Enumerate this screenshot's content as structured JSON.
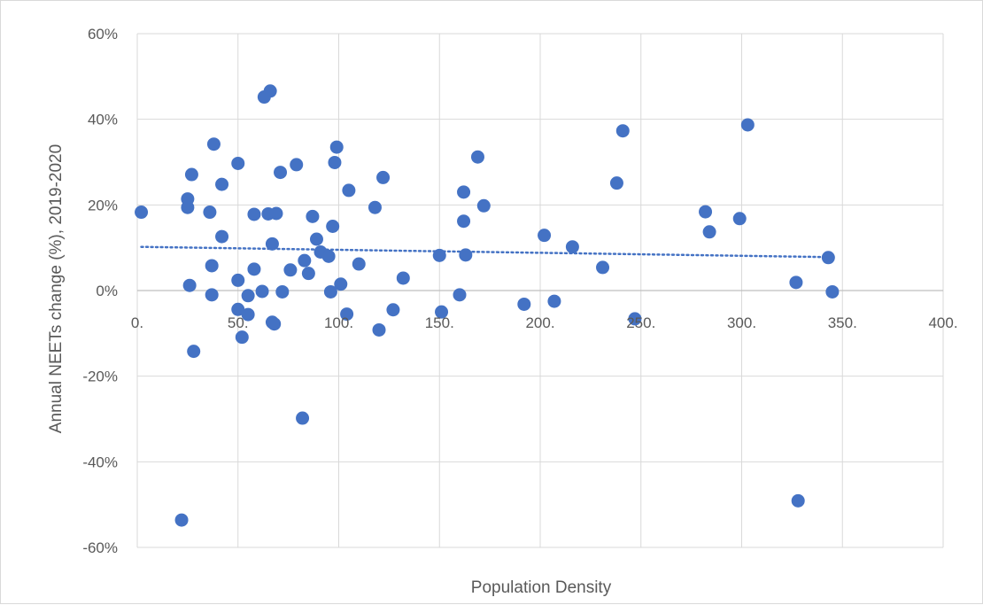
{
  "chart_data": {
    "type": "scatter",
    "xlabel": "Population Density",
    "ylabel": "Annual NEETs change (%), 2019-2020",
    "xlim": [
      0,
      400
    ],
    "ylim": [
      -60,
      60
    ],
    "x_ticks": [
      {
        "value": 0,
        "label": "0."
      },
      {
        "value": 50,
        "label": "50."
      },
      {
        "value": 100,
        "label": "100."
      },
      {
        "value": 150,
        "label": "150."
      },
      {
        "value": 200,
        "label": "200."
      },
      {
        "value": 250,
        "label": "250."
      },
      {
        "value": 300,
        "label": "300."
      },
      {
        "value": 350,
        "label": "350."
      },
      {
        "value": 400,
        "label": "400."
      }
    ],
    "y_ticks": [
      {
        "value": 60,
        "label": "60%"
      },
      {
        "value": 40,
        "label": "40%"
      },
      {
        "value": 20,
        "label": "20%"
      },
      {
        "value": 0,
        "label": "0%"
      },
      {
        "value": -20,
        "label": "-20%"
      },
      {
        "value": -40,
        "label": "-40%"
      },
      {
        "value": -60,
        "label": "-60%"
      }
    ],
    "grid": true,
    "legend": "none",
    "colors": {
      "point": "#4472c4",
      "trendline": "#4472c4",
      "grid": "#d9d9d9",
      "axis": "#bfbfbf",
      "text": "#595959"
    },
    "trendline": {
      "type": "linear",
      "style": "dotted",
      "x": [
        2,
        345
      ],
      "y": [
        10.2,
        7.8
      ]
    },
    "series": [
      {
        "points": [
          {
            "x": 2,
            "y": 18.3
          },
          {
            "x": 22,
            "y": -53.6
          },
          {
            "x": 25,
            "y": 21.4
          },
          {
            "x": 25,
            "y": 19.4
          },
          {
            "x": 26,
            "y": 1.2
          },
          {
            "x": 27,
            "y": 27.1
          },
          {
            "x": 28,
            "y": -14.2
          },
          {
            "x": 36,
            "y": 18.3
          },
          {
            "x": 37,
            "y": 5.8
          },
          {
            "x": 37,
            "y": -1.0
          },
          {
            "x": 38,
            "y": 34.2
          },
          {
            "x": 42,
            "y": 24.8
          },
          {
            "x": 42,
            "y": 12.6
          },
          {
            "x": 50,
            "y": 29.7
          },
          {
            "x": 50,
            "y": 2.4
          },
          {
            "x": 50,
            "y": -4.4
          },
          {
            "x": 52,
            "y": -10.9
          },
          {
            "x": 55,
            "y": -1.2
          },
          {
            "x": 55,
            "y": -5.6
          },
          {
            "x": 58,
            "y": 17.8
          },
          {
            "x": 58,
            "y": 5.0
          },
          {
            "x": 62,
            "y": -0.2
          },
          {
            "x": 63,
            "y": 45.2
          },
          {
            "x": 65,
            "y": 17.9
          },
          {
            "x": 66,
            "y": 46.6
          },
          {
            "x": 67,
            "y": 10.9
          },
          {
            "x": 67,
            "y": -7.4
          },
          {
            "x": 68,
            "y": -7.8
          },
          {
            "x": 69,
            "y": 18.0
          },
          {
            "x": 71,
            "y": 27.6
          },
          {
            "x": 72,
            "y": -0.3
          },
          {
            "x": 76,
            "y": 4.8
          },
          {
            "x": 79,
            "y": 29.4
          },
          {
            "x": 82,
            "y": -29.8
          },
          {
            "x": 83,
            "y": 7.0
          },
          {
            "x": 85,
            "y": 4.0
          },
          {
            "x": 87,
            "y": 17.3
          },
          {
            "x": 89,
            "y": 12.0
          },
          {
            "x": 91,
            "y": 9.0
          },
          {
            "x": 95,
            "y": 8.0
          },
          {
            "x": 96,
            "y": -0.3
          },
          {
            "x": 97,
            "y": 15.0
          },
          {
            "x": 98,
            "y": 29.9
          },
          {
            "x": 99,
            "y": 33.5
          },
          {
            "x": 101,
            "y": 1.5
          },
          {
            "x": 104,
            "y": -5.5
          },
          {
            "x": 105,
            "y": 23.4
          },
          {
            "x": 110,
            "y": 6.2
          },
          {
            "x": 118,
            "y": 19.4
          },
          {
            "x": 120,
            "y": -9.2
          },
          {
            "x": 122,
            "y": 26.4
          },
          {
            "x": 127,
            "y": -4.5
          },
          {
            "x": 132,
            "y": 2.9
          },
          {
            "x": 150,
            "y": 8.2
          },
          {
            "x": 151,
            "y": -5.0
          },
          {
            "x": 160,
            "y": -1.0
          },
          {
            "x": 162,
            "y": 16.2
          },
          {
            "x": 162,
            "y": 23.0
          },
          {
            "x": 163,
            "y": 8.3
          },
          {
            "x": 169,
            "y": 31.2
          },
          {
            "x": 172,
            "y": 19.8
          },
          {
            "x": 192,
            "y": -3.2
          },
          {
            "x": 202,
            "y": 12.9
          },
          {
            "x": 207,
            "y": -2.5
          },
          {
            "x": 216,
            "y": 10.2
          },
          {
            "x": 231,
            "y": 5.4
          },
          {
            "x": 238,
            "y": 25.1
          },
          {
            "x": 241,
            "y": 37.3
          },
          {
            "x": 247,
            "y": -6.6
          },
          {
            "x": 282,
            "y": 18.4
          },
          {
            "x": 284,
            "y": 13.7
          },
          {
            "x": 299,
            "y": 16.8
          },
          {
            "x": 303,
            "y": 38.7
          },
          {
            "x": 327,
            "y": 1.9
          },
          {
            "x": 328,
            "y": -49.1
          },
          {
            "x": 343,
            "y": 7.7
          },
          {
            "x": 345,
            "y": -0.3
          }
        ]
      }
    ]
  }
}
